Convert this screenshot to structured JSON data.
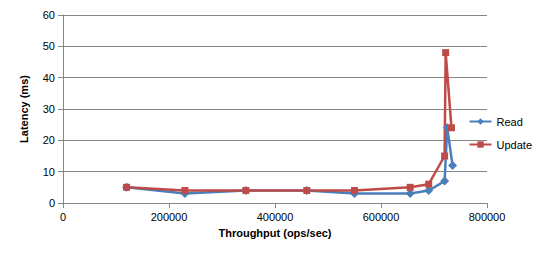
{
  "chart_data": {
    "type": "line",
    "xlabel": "Throughput (ops/sec)",
    "ylabel": "Latency (ms)",
    "xlim": [
      0,
      800000
    ],
    "xticks": [
      0,
      200000,
      400000,
      600000,
      800000
    ],
    "ylim": [
      0,
      60
    ],
    "yticks": [
      0,
      10,
      20,
      30,
      40,
      50,
      60
    ],
    "grid": true,
    "legend": "right",
    "series": [
      {
        "name": "Read",
        "color": "#4a7ebb",
        "marker": "diamond",
        "line_style": "solid",
        "x": [
          120000,
          230000,
          345000,
          460000,
          550000,
          655000,
          690000,
          720000,
          725000,
          735000
        ],
        "values": [
          5,
          3,
          4,
          4,
          3,
          3,
          4,
          7,
          24,
          12
        ]
      },
      {
        "name": "Update",
        "color": "#be4b48",
        "marker": "square",
        "line_style": "solid",
        "x": [
          120000,
          230000,
          345000,
          460000,
          550000,
          655000,
          690000,
          720000,
          722000,
          733000
        ],
        "values": [
          5,
          4,
          4,
          4,
          4,
          5,
          6,
          15,
          48,
          24
        ]
      }
    ]
  }
}
